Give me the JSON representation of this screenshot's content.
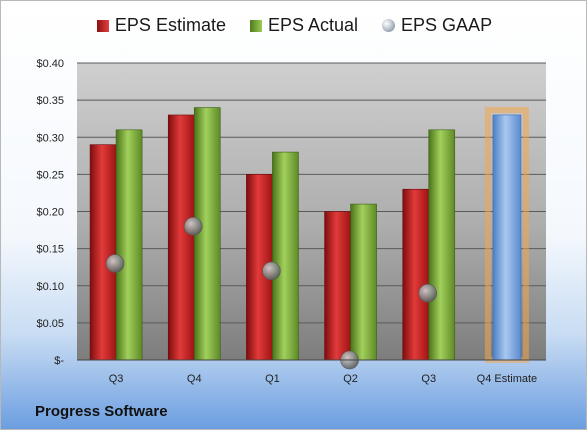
{
  "legend": {
    "estimate": "EPS Estimate",
    "actual": "EPS Actual",
    "gaap": "EPS GAAP"
  },
  "company": "Progress Software",
  "colors": {
    "estimate": "#c81e1e",
    "actual": "#74a63a",
    "gaap": "#8c8c8c",
    "forecast": "#6f9fdc",
    "forecast_glow": "#f3a64a"
  },
  "chart_data": {
    "type": "bar",
    "categories": [
      "Q3",
      "Q4",
      "Q1",
      "Q2",
      "Q3",
      "Q4 Estimate"
    ],
    "series": [
      {
        "name": "EPS Estimate",
        "values": [
          0.29,
          0.33,
          0.25,
          0.2,
          0.23,
          null
        ]
      },
      {
        "name": "EPS Actual",
        "values": [
          0.31,
          0.34,
          0.28,
          0.21,
          0.31,
          null
        ]
      },
      {
        "name": "EPS GAAP",
        "values": [
          0.13,
          0.18,
          0.12,
          0.0,
          0.09,
          null
        ]
      }
    ],
    "forecast": {
      "category": "Q4 Estimate",
      "value": 0.33
    },
    "ylim": [
      0,
      0.4
    ],
    "yticks": [
      {
        "value": 0.4,
        "label": "$0.40"
      },
      {
        "value": 0.35,
        "label": "$0.35"
      },
      {
        "value": 0.3,
        "label": "$0.30"
      },
      {
        "value": 0.25,
        "label": "$0.25"
      },
      {
        "value": 0.2,
        "label": "$0.20"
      },
      {
        "value": 0.15,
        "label": "$0.15"
      },
      {
        "value": 0.1,
        "label": "$0.10"
      },
      {
        "value": 0.05,
        "label": "$0.05"
      },
      {
        "value": 0.0,
        "label": "$-"
      }
    ],
    "grid": true,
    "legend_position": "top"
  }
}
